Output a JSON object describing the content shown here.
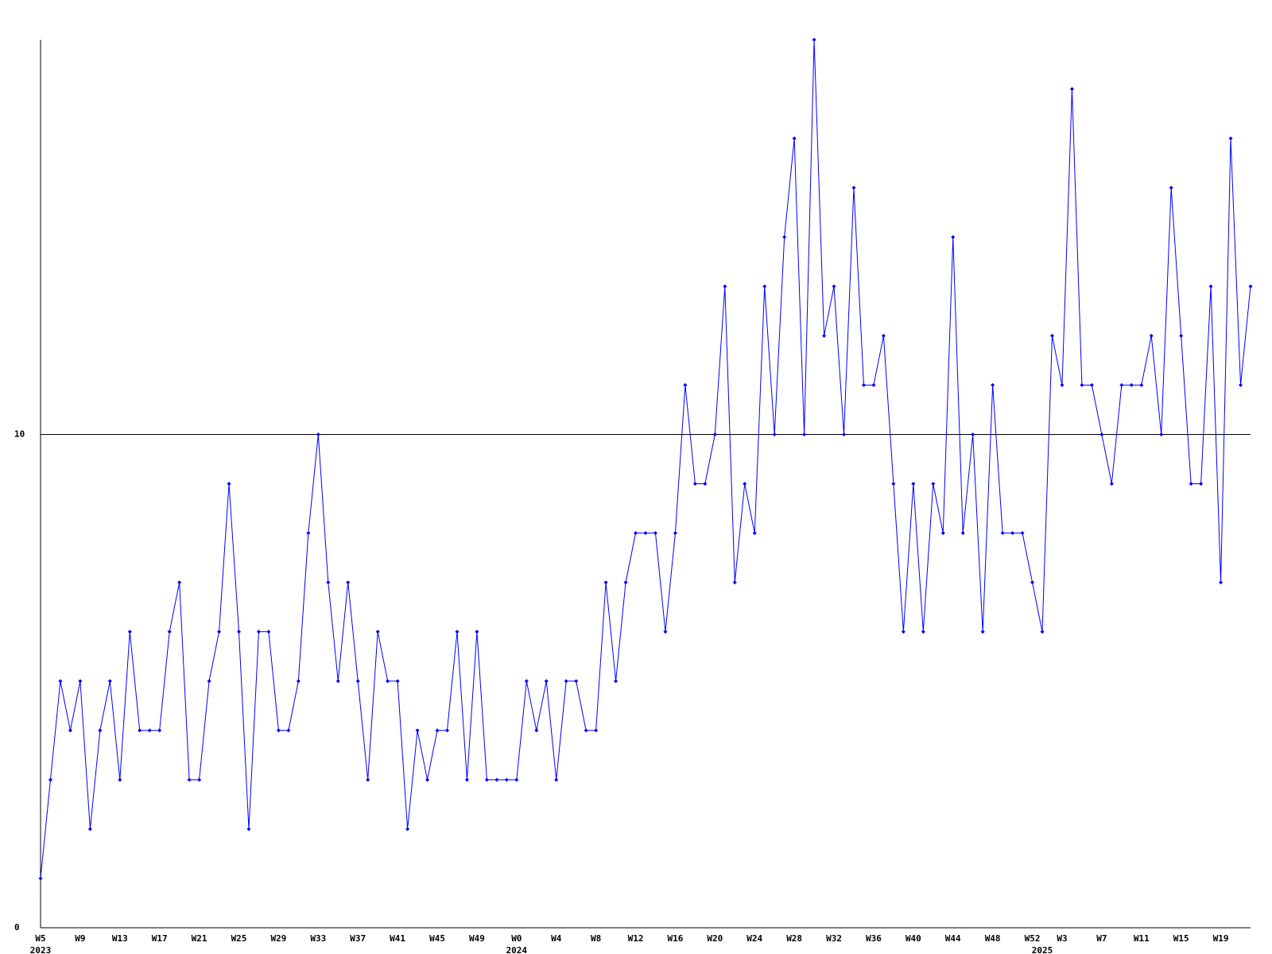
{
  "chart_data": {
    "type": "line",
    "categories": [
      "W5",
      null,
      null,
      null,
      "W9",
      null,
      null,
      null,
      "W13",
      null,
      null,
      null,
      "W17",
      null,
      null,
      null,
      "W21",
      null,
      null,
      null,
      "W25",
      null,
      null,
      null,
      "W29",
      null,
      null,
      null,
      "W33",
      null,
      null,
      null,
      "W37",
      null,
      null,
      null,
      "W41",
      null,
      null,
      null,
      "W45",
      null,
      null,
      null,
      "W49",
      null,
      null,
      null,
      "W0",
      null,
      null,
      null,
      "W4",
      null,
      null,
      null,
      "W8",
      null,
      null,
      null,
      "W12",
      null,
      null,
      null,
      "W16",
      null,
      null,
      null,
      "W20",
      null,
      null,
      null,
      "W24",
      null,
      null,
      null,
      "W28",
      null,
      null,
      null,
      "W32",
      null,
      null,
      null,
      "W36",
      null,
      null,
      null,
      "W40",
      null,
      null,
      null,
      "W44",
      null,
      null,
      null,
      "W48",
      null,
      null,
      null,
      "W52",
      null,
      null,
      "W3",
      null,
      null,
      null,
      "W7",
      null,
      null,
      null,
      "W11",
      null,
      null,
      null,
      "W15",
      null,
      null,
      null,
      "W19",
      null,
      null,
      null
    ],
    "years": [
      "2023",
      null,
      null,
      null,
      null,
      null,
      null,
      null,
      null,
      null,
      null,
      null,
      null,
      null,
      null,
      null,
      null,
      null,
      null,
      null,
      null,
      null,
      null,
      null,
      null,
      null,
      null,
      null,
      null,
      null,
      null,
      null,
      null,
      null,
      null,
      null,
      null,
      null,
      null,
      null,
      null,
      null,
      null,
      null,
      null,
      null,
      null,
      null,
      "2024",
      null,
      null,
      null,
      null,
      null,
      null,
      null,
      null,
      null,
      null,
      null,
      null,
      null,
      null,
      null,
      null,
      null,
      null,
      null,
      null,
      null,
      null,
      null,
      null,
      null,
      null,
      null,
      null,
      null,
      null,
      null,
      null,
      null,
      null,
      null,
      null,
      null,
      null,
      null,
      null,
      null,
      null,
      null,
      null,
      null,
      null,
      null,
      null,
      null,
      null,
      null,
      null,
      "2025",
      null,
      null,
      null,
      null,
      null,
      null,
      null,
      null,
      null,
      null,
      null,
      null,
      null,
      null,
      null,
      null,
      null,
      null,
      null,
      null
    ],
    "series": [
      {
        "color": "#0000ff",
        "values": [
          1,
          3,
          5,
          4,
          5,
          2,
          4,
          5,
          3,
          6,
          4,
          4,
          4,
          6,
          7,
          3,
          3,
          5,
          6,
          9,
          6,
          2,
          6,
          6,
          4,
          4,
          5,
          8,
          10,
          7,
          5,
          7,
          5,
          3,
          6,
          5,
          5,
          2,
          4,
          3,
          4,
          4,
          6,
          3,
          6,
          3,
          3,
          3,
          3,
          5,
          4,
          5,
          3,
          5,
          5,
          4,
          4,
          7,
          5,
          7,
          8,
          8,
          8,
          6,
          8,
          11,
          9,
          9,
          10,
          13,
          7,
          9,
          8,
          13,
          10,
          14,
          16,
          10,
          18,
          12,
          13,
          10,
          15,
          11,
          11,
          12,
          9,
          6,
          9,
          6,
          9,
          8,
          14,
          8,
          10,
          6,
          11,
          8,
          8,
          8,
          7,
          6,
          12,
          11,
          17,
          11,
          11,
          10,
          9,
          11,
          11,
          11,
          12,
          10,
          15,
          12,
          9,
          9,
          13,
          7,
          16,
          11,
          13
        ]
      }
    ],
    "ylim": [
      0,
      18
    ],
    "yticks": [
      0,
      10
    ],
    "grid": true
  }
}
